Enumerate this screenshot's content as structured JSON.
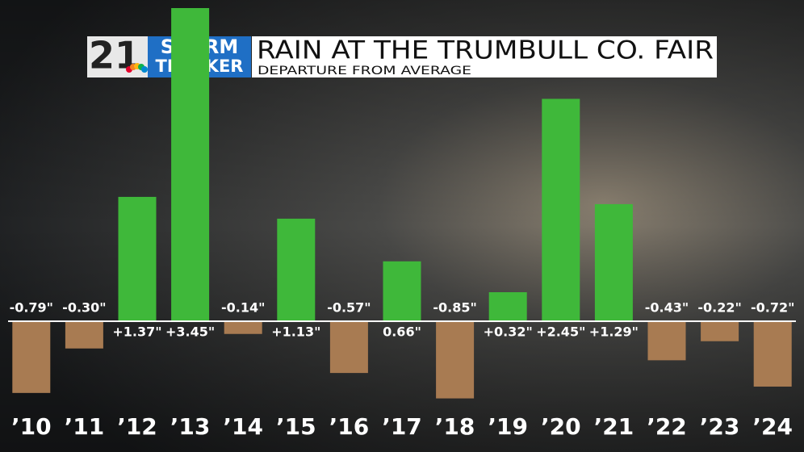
{
  "chart_data": {
    "type": "bar",
    "logo": {
      "number": "21",
      "line1": "STORM",
      "line2": "TRACKER"
    },
    "title": "RAIN AT THE TRUMBULL CO. FAIR",
    "subtitle": "DEPARTURE FROM AVERAGE",
    "categories": [
      "’10",
      "’11",
      "’12",
      "’13",
      "’14",
      "’15",
      "’16",
      "’17",
      "’18",
      "’19",
      "’20",
      "’21",
      "’22",
      "’23",
      "’24"
    ],
    "values": [
      -0.79,
      -0.3,
      1.37,
      3.45,
      -0.14,
      1.13,
      -0.57,
      0.66,
      -0.85,
      0.32,
      2.45,
      1.29,
      -0.43,
      -0.22,
      -0.72
    ],
    "value_labels": [
      "-0.79\"",
      "-0.30\"",
      "+1.37\"",
      "+3.45\"",
      "-0.14\"",
      "+1.13\"",
      "-0.57\"",
      "0.66\"",
      "-0.85\"",
      "+0.32\"",
      "+2.45\"",
      "+1.29\"",
      "-0.43\"",
      "-0.22\"",
      "-0.72\""
    ],
    "positive_color": "#3fb83a",
    "negative_color": "#a87b52"
  }
}
